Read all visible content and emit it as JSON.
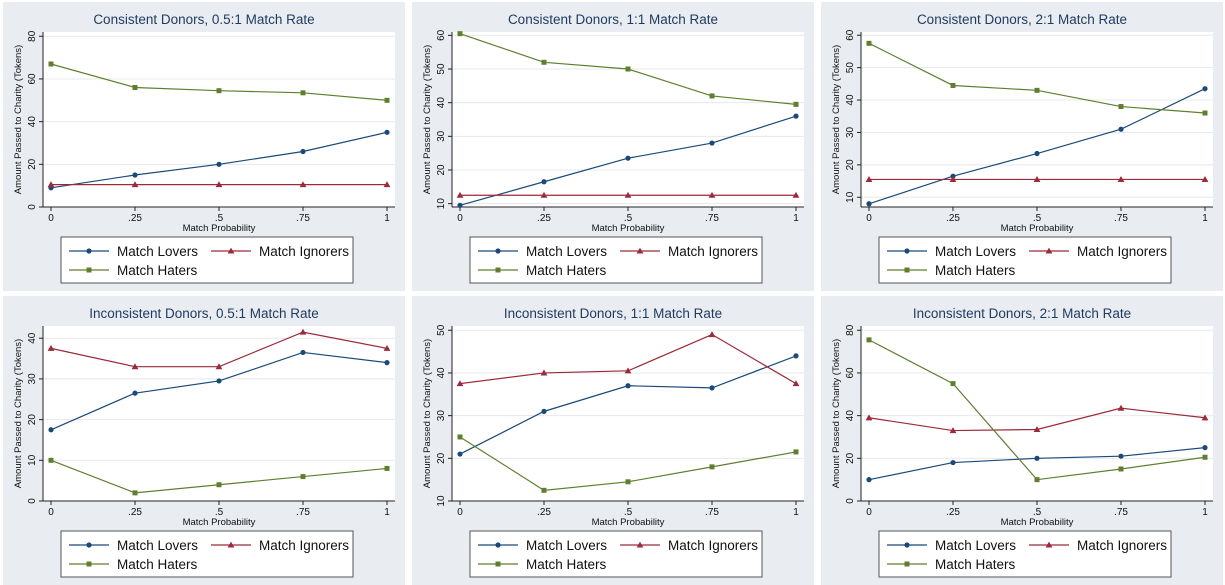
{
  "x_tick_labels": [
    "0",
    ".25",
    ".5",
    ".75",
    "1"
  ],
  "xlabel": "Match Probability",
  "ylabel": "Amount Passed to Charity (Tokens)",
  "colors": {
    "lovers": "#1a4a7a",
    "ignorers": "#9b2a3a",
    "haters": "#5f7f2f"
  },
  "chart_data": [
    {
      "type": "line",
      "title": "Consistent Donors, 0.5:1 Match Rate",
      "x": [
        0,
        0.25,
        0.5,
        0.75,
        1
      ],
      "xlabel": "Match Probability",
      "ylabel": "Amount Passed to Charity (Tokens)",
      "ylim": [
        0,
        82
      ],
      "yticks": [
        0,
        20,
        40,
        60,
        80
      ],
      "series": [
        {
          "name": "Match Lovers",
          "values": [
            9,
            15,
            20,
            26,
            35
          ]
        },
        {
          "name": "Match Ignorers",
          "values": [
            10.5,
            10.5,
            10.5,
            10.5,
            10.5
          ]
        },
        {
          "name": "Match Haters",
          "values": [
            67,
            56,
            54.5,
            53.5,
            50
          ]
        }
      ],
      "legend": "bottom"
    },
    {
      "type": "line",
      "title": "Consistent Donors, 1:1 Match Rate",
      "x": [
        0,
        0.25,
        0.5,
        0.75,
        1
      ],
      "xlabel": "Match Probability",
      "ylabel": "Amount Passed to Charity (Tokens)",
      "ylim": [
        9,
        61
      ],
      "yticks": [
        10,
        20,
        30,
        40,
        50,
        60
      ],
      "series": [
        {
          "name": "Match Lovers",
          "values": [
            9.5,
            16.5,
            23.5,
            28,
            36
          ]
        },
        {
          "name": "Match Ignorers",
          "values": [
            12.5,
            12.5,
            12.5,
            12.5,
            12.5
          ]
        },
        {
          "name": "Match Haters",
          "values": [
            60.5,
            52,
            50,
            42,
            39.5
          ]
        }
      ],
      "legend": "bottom"
    },
    {
      "type": "line",
      "title": "Consistent Donors, 2:1 Match Rate",
      "x": [
        0,
        0.25,
        0.5,
        0.75,
        1
      ],
      "xlabel": "Match Probability",
      "ylabel": "Amount Passed to Charity (Tokens)",
      "ylim": [
        7,
        61
      ],
      "yticks": [
        10,
        20,
        30,
        40,
        50,
        60
      ],
      "series": [
        {
          "name": "Match Lovers",
          "values": [
            8,
            16.5,
            23.5,
            31,
            43.5
          ]
        },
        {
          "name": "Match Ignorers",
          "values": [
            15.5,
            15.5,
            15.5,
            15.5,
            15.5
          ]
        },
        {
          "name": "Match Haters",
          "values": [
            57.5,
            44.5,
            43,
            38,
            36
          ]
        }
      ],
      "legend": "bottom"
    },
    {
      "type": "line",
      "title": "Inconsistent Donors, 0.5:1 Match Rate",
      "x": [
        0,
        0.25,
        0.5,
        0.75,
        1
      ],
      "xlabel": "Match Probability",
      "ylabel": "Amount Passed to Charity (Tokens)",
      "ylim": [
        0,
        43
      ],
      "yticks": [
        0,
        10,
        20,
        30,
        40
      ],
      "series": [
        {
          "name": "Match Lovers",
          "values": [
            17.5,
            26.5,
            29.5,
            36.5,
            34
          ]
        },
        {
          "name": "Match Ignorers",
          "values": [
            37.5,
            33,
            33,
            41.5,
            37.5
          ]
        },
        {
          "name": "Match Haters",
          "values": [
            10,
            2,
            4,
            6,
            8
          ]
        }
      ],
      "legend": "bottom"
    },
    {
      "type": "line",
      "title": "Inconsistent Donors, 1:1 Match Rate",
      "x": [
        0,
        0.25,
        0.5,
        0.75,
        1
      ],
      "xlabel": "Match Probability",
      "ylabel": "Amount Passed to Charity (Tokens)",
      "ylim": [
        10,
        51
      ],
      "yticks": [
        10,
        20,
        30,
        40,
        50
      ],
      "series": [
        {
          "name": "Match Lovers",
          "values": [
            21,
            31,
            37,
            36.5,
            44
          ]
        },
        {
          "name": "Match Ignorers",
          "values": [
            37.5,
            40,
            40.5,
            49,
            37.5
          ]
        },
        {
          "name": "Match Haters",
          "values": [
            25,
            12.5,
            14.5,
            18,
            21.5
          ]
        }
      ],
      "legend": "bottom"
    },
    {
      "type": "line",
      "title": "Inconsistent Donors, 2:1 Match Rate",
      "x": [
        0,
        0.25,
        0.5,
        0.75,
        1
      ],
      "xlabel": "Match Probability",
      "ylabel": "Amount Passed to Charity (Tokens)",
      "ylim": [
        0,
        82
      ],
      "yticks": [
        0,
        20,
        40,
        60,
        80
      ],
      "series": [
        {
          "name": "Match Lovers",
          "values": [
            10,
            18,
            20,
            21,
            25
          ]
        },
        {
          "name": "Match Ignorers",
          "values": [
            39,
            33,
            33.5,
            43.5,
            39
          ]
        },
        {
          "name": "Match Haters",
          "values": [
            75.5,
            55,
            10,
            15,
            20.5
          ]
        }
      ],
      "legend": "bottom"
    }
  ]
}
